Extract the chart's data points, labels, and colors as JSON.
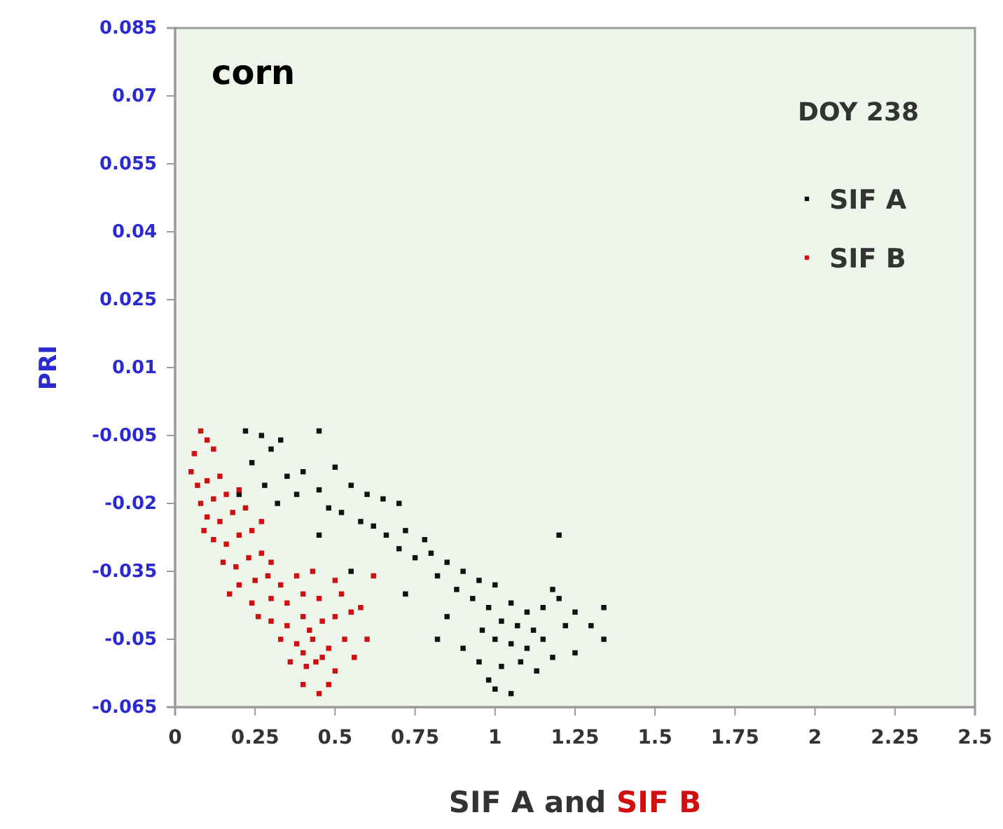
{
  "chart_data": {
    "type": "scatter",
    "title": "corn",
    "xlabel": "SIF A and SIF B",
    "ylabel": "PRI",
    "annotations": [
      "DOY 238"
    ],
    "xlim": [
      0,
      2.5
    ],
    "xticks": [
      0,
      0.25,
      0.5,
      0.75,
      1,
      1.25,
      1.5,
      1.75,
      2,
      2.25,
      2.5
    ],
    "ylim": [
      -0.065,
      0.085
    ],
    "yticks": [
      -0.065,
      -0.05,
      -0.035,
      -0.02,
      -0.005,
      0.01,
      0.025,
      0.04,
      0.055,
      0.07,
      0.085
    ],
    "legend": "top right",
    "marker": "square",
    "grid": false,
    "series": [
      {
        "name": "SIF A",
        "color": "#111111",
        "x": [
          0.22,
          0.27,
          0.33,
          0.45,
          0.3,
          0.24,
          0.35,
          0.4,
          0.5,
          0.55,
          0.28,
          0.2,
          0.38,
          0.45,
          0.6,
          0.65,
          0.7,
          0.32,
          0.48,
          0.52,
          0.58,
          0.62,
          0.66,
          0.72,
          0.78,
          0.7,
          0.75,
          0.8,
          0.85,
          0.9,
          0.82,
          0.95,
          1.0,
          0.88,
          0.93,
          0.98,
          1.05,
          1.1,
          1.15,
          1.2,
          1.02,
          1.07,
          1.12,
          0.96,
          1.0,
          1.05,
          1.1,
          1.15,
          0.9,
          0.95,
          1.02,
          1.08,
          1.13,
          1.18,
          1.25,
          1.0,
          1.05,
          0.98,
          1.22,
          1.3,
          1.34,
          1.34,
          1.2,
          0.82,
          0.85,
          0.72,
          0.55,
          0.45,
          1.18,
          1.25
        ],
        "values": [
          -0.004,
          -0.005,
          -0.006,
          -0.004,
          -0.008,
          -0.011,
          -0.014,
          -0.013,
          -0.012,
          -0.016,
          -0.016,
          -0.018,
          -0.018,
          -0.017,
          -0.018,
          -0.019,
          -0.02,
          -0.02,
          -0.021,
          -0.022,
          -0.024,
          -0.025,
          -0.027,
          -0.026,
          -0.028,
          -0.03,
          -0.032,
          -0.031,
          -0.033,
          -0.035,
          -0.036,
          -0.037,
          -0.038,
          -0.039,
          -0.041,
          -0.043,
          -0.042,
          -0.044,
          -0.043,
          -0.041,
          -0.046,
          -0.047,
          -0.048,
          -0.048,
          -0.05,
          -0.051,
          -0.052,
          -0.05,
          -0.052,
          -0.055,
          -0.056,
          -0.055,
          -0.057,
          -0.054,
          -0.053,
          -0.061,
          -0.062,
          -0.059,
          -0.047,
          -0.047,
          -0.043,
          -0.05,
          -0.027,
          -0.05,
          -0.045,
          -0.04,
          -0.035,
          -0.027,
          -0.039,
          -0.044
        ]
      },
      {
        "name": "SIF B",
        "color": "#d01010",
        "x": [
          0.08,
          0.1,
          0.06,
          0.12,
          0.05,
          0.07,
          0.1,
          0.14,
          0.08,
          0.12,
          0.16,
          0.2,
          0.1,
          0.14,
          0.18,
          0.22,
          0.12,
          0.16,
          0.2,
          0.24,
          0.27,
          0.15,
          0.19,
          0.23,
          0.27,
          0.2,
          0.25,
          0.29,
          0.33,
          0.38,
          0.43,
          0.5,
          0.24,
          0.3,
          0.35,
          0.4,
          0.45,
          0.52,
          0.3,
          0.35,
          0.4,
          0.42,
          0.46,
          0.5,
          0.55,
          0.33,
          0.38,
          0.43,
          0.48,
          0.53,
          0.36,
          0.41,
          0.46,
          0.5,
          0.56,
          0.4,
          0.45,
          0.48,
          0.44,
          0.4,
          0.3,
          0.6,
          0.62,
          0.58,
          0.17,
          0.26,
          0.09
        ],
        "values": [
          -0.004,
          -0.006,
          -0.009,
          -0.008,
          -0.013,
          -0.016,
          -0.015,
          -0.014,
          -0.02,
          -0.019,
          -0.018,
          -0.017,
          -0.023,
          -0.024,
          -0.022,
          -0.021,
          -0.028,
          -0.029,
          -0.027,
          -0.026,
          -0.024,
          -0.033,
          -0.034,
          -0.032,
          -0.031,
          -0.038,
          -0.037,
          -0.036,
          -0.038,
          -0.036,
          -0.035,
          -0.037,
          -0.042,
          -0.041,
          -0.042,
          -0.04,
          -0.041,
          -0.04,
          -0.046,
          -0.047,
          -0.045,
          -0.048,
          -0.046,
          -0.045,
          -0.044,
          -0.05,
          -0.051,
          -0.05,
          -0.052,
          -0.05,
          -0.055,
          -0.056,
          -0.054,
          -0.057,
          -0.054,
          -0.06,
          -0.062,
          -0.06,
          -0.055,
          -0.053,
          -0.033,
          -0.05,
          -0.036,
          -0.043,
          -0.04,
          -0.045,
          -0.026
        ]
      }
    ]
  }
}
